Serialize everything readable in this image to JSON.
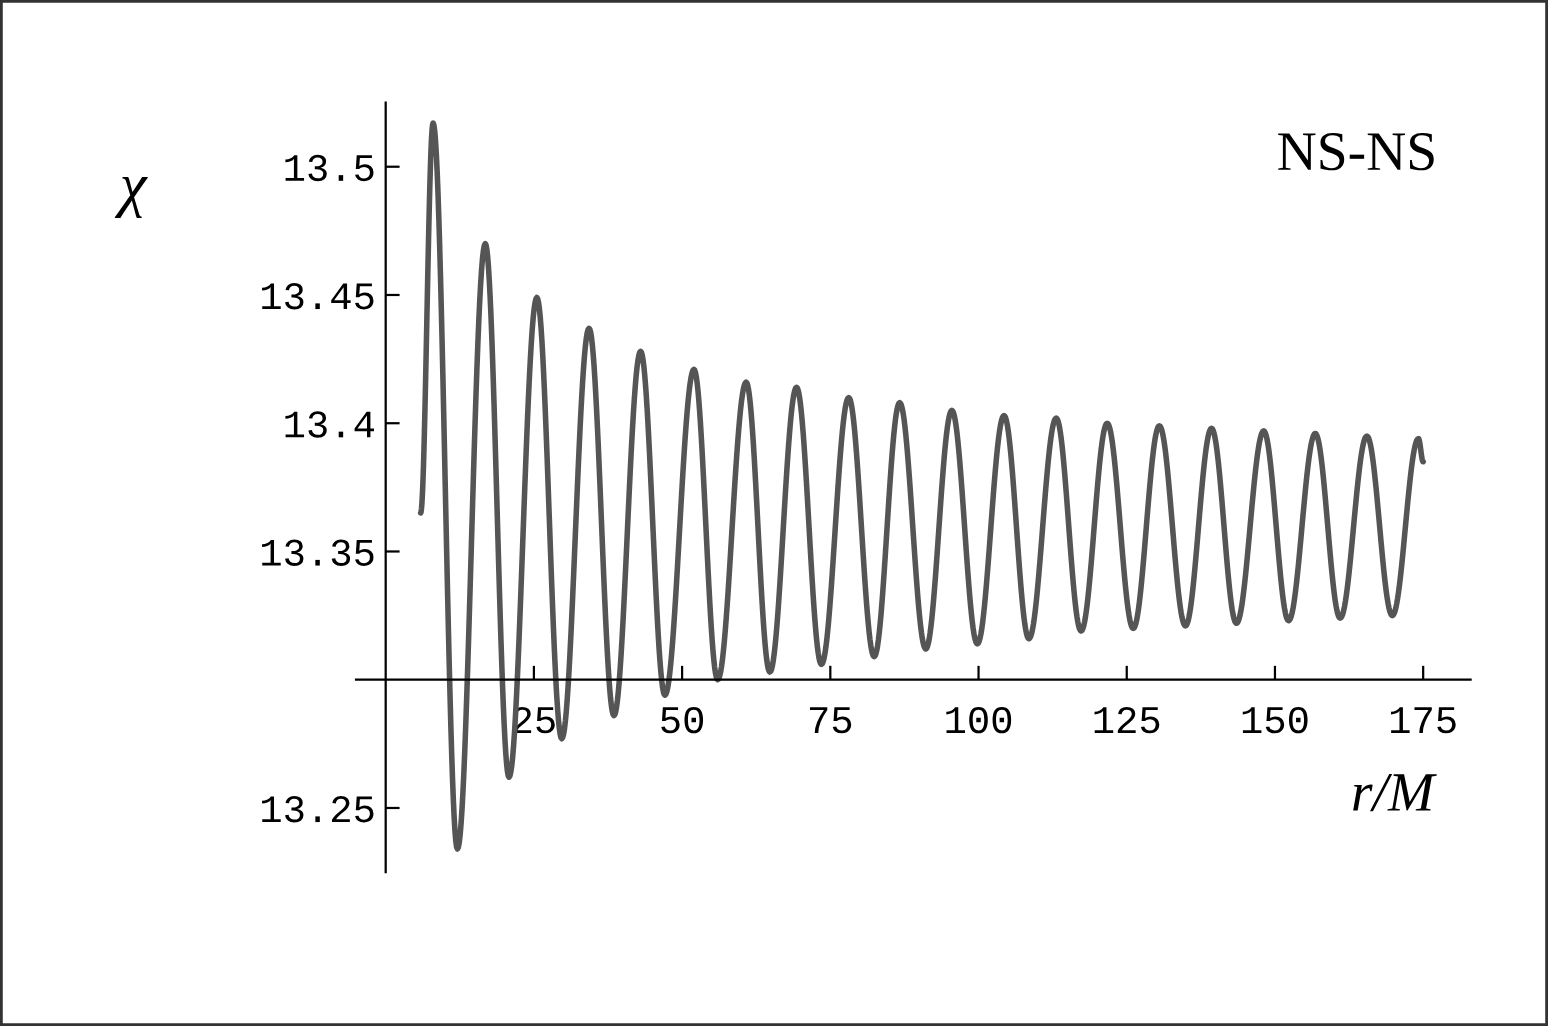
{
  "chart_data": {
    "type": "line",
    "xlabel": "r/M",
    "ylabel": "χ",
    "xlim": [
      -5,
      183
    ],
    "ylim": [
      13.225,
      13.525
    ],
    "xticks": [
      25,
      50,
      75,
      100,
      125,
      150,
      175
    ],
    "yticks": [
      13.25,
      13.35,
      13.4,
      13.45,
      13.5
    ],
    "grid": false,
    "legend": false,
    "marker": "none",
    "line_style": "solid",
    "series": [
      {
        "name": "NS-NS",
        "color": "#555555",
        "x": [
          5.9,
          8.0,
          12.1,
          16.8,
          20.8,
          25.5,
          29.7,
          34.3,
          38.5,
          43.0,
          47.1,
          52.0,
          56.0,
          60.8,
          64.8,
          69.3,
          73.5,
          78.1,
          82.4,
          86.7,
          91.1,
          95.5,
          99.8,
          104.3,
          108.5,
          113.1,
          117.3,
          121.7,
          126.1,
          130.5,
          134.9,
          139.3,
          143.5,
          148.1,
          152.3,
          156.8,
          161.0,
          165.5,
          169.8,
          174.2,
          175.0
        ],
        "values": [
          13.365,
          13.517,
          13.234,
          13.47,
          13.262,
          13.449,
          13.277,
          13.437,
          13.286,
          13.428,
          13.294,
          13.421,
          13.3,
          13.416,
          13.303,
          13.414,
          13.306,
          13.41,
          13.309,
          13.408,
          13.312,
          13.405,
          13.314,
          13.403,
          13.316,
          13.402,
          13.319,
          13.4,
          13.32,
          13.399,
          13.321,
          13.398,
          13.322,
          13.397,
          13.323,
          13.396,
          13.324,
          13.395,
          13.325,
          13.394,
          13.385
        ]
      }
    ]
  }
}
